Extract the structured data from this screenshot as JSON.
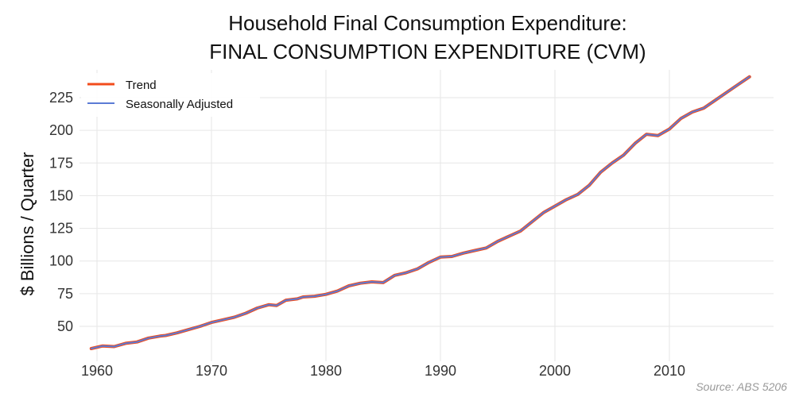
{
  "chart_data": {
    "type": "line",
    "title": [
      "Household Final Consumption Expenditure:",
      "FINAL CONSUMPTION EXPENDITURE (CVM)"
    ],
    "xlabel": "",
    "ylabel": "$ Billions / Quarter",
    "xlim": [
      1958.5,
      2019
    ],
    "ylim": [
      27,
      248
    ],
    "xticks": [
      1960,
      1970,
      1980,
      1990,
      2000,
      2010
    ],
    "yticks": [
      50,
      75,
      100,
      125,
      150,
      175,
      200,
      225
    ],
    "grid": true,
    "legend_position": "top-left",
    "x": [
      1959.5,
      1960.5,
      1961.5,
      1962.5,
      1963.5,
      1964.5,
      1965.5,
      1966,
      1967,
      1968,
      1969,
      1970,
      1971,
      1972,
      1973,
      1974,
      1975,
      1975.7,
      1976.5,
      1977.5,
      1978,
      1979,
      1980,
      1981,
      1982,
      1983,
      1984,
      1985,
      1986,
      1987,
      1988,
      1989,
      1990,
      1991,
      1992,
      1993,
      1994,
      1995,
      1996,
      1997,
      1998,
      1999,
      2000,
      2001,
      2002,
      2003,
      2004,
      2005,
      2006,
      2007,
      2008,
      2009,
      2010,
      2011,
      2012,
      2013,
      2014,
      2015,
      2016,
      2017
    ],
    "series": [
      {
        "name": "Trend",
        "color": "#f24c1c",
        "values": [
          33,
          35,
          34.5,
          37,
          38,
          41,
          42.5,
          43,
          45,
          47.5,
          50,
          53,
          55,
          57,
          60,
          64,
          66.5,
          66,
          70,
          71,
          72.5,
          73,
          74.5,
          77,
          81,
          83,
          84,
          83.5,
          89,
          91,
          94,
          99,
          103,
          103.5,
          106,
          108,
          110,
          115,
          119,
          123,
          130,
          137,
          142,
          147,
          151,
          158,
          168,
          175,
          181,
          190,
          197,
          196,
          201,
          209,
          214,
          217,
          223,
          229,
          235,
          241
        ]
      },
      {
        "name": "Seasonally Adjusted",
        "color": "#5b7bd5",
        "values": [
          33,
          35,
          34.5,
          37,
          38,
          41,
          42.5,
          43,
          45,
          47.5,
          50,
          53,
          55,
          57,
          60,
          64,
          66.5,
          66,
          70,
          71,
          72.5,
          73,
          74.5,
          77,
          81,
          83,
          84,
          83.5,
          89,
          91,
          94,
          99,
          103,
          103.5,
          106,
          108,
          110,
          115,
          119,
          123,
          130,
          137,
          142,
          147,
          151,
          158,
          168,
          175,
          181,
          190,
          197,
          196,
          201,
          209,
          214,
          217,
          223,
          229,
          235,
          241
        ]
      }
    ],
    "source": "Source: ABS 5206"
  }
}
